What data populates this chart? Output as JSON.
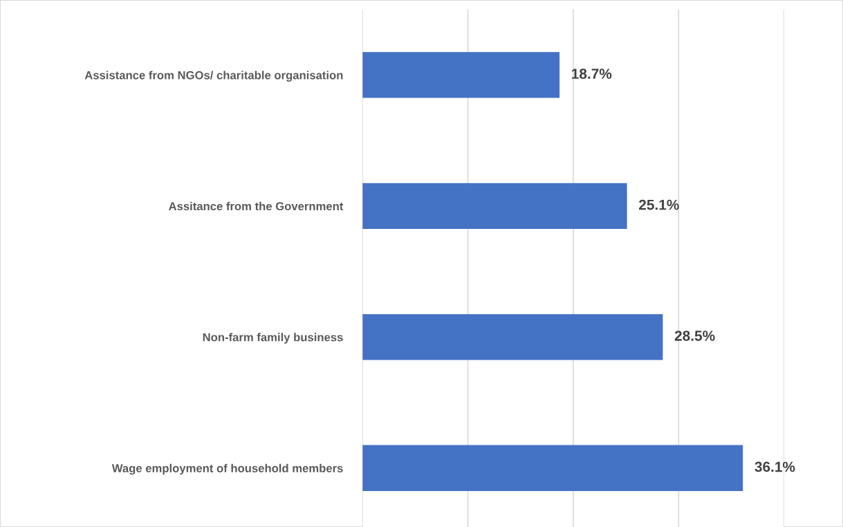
{
  "chart_data": {
    "type": "bar",
    "orientation": "horizontal",
    "categories": [
      "Assistance from NGOs/ charitable organisation",
      "Assitance from the Government",
      "Non-farm family business",
      "Wage employment of household members"
    ],
    "values": [
      18.7,
      25.1,
      28.5,
      36.1
    ],
    "value_labels": [
      "18.7%",
      "25.1%",
      "28.5%",
      "36.1%"
    ],
    "color": "#4472c4",
    "xlim": [
      0,
      40
    ],
    "xticks": [
      {
        "value": 0,
        "label": null
      },
      {
        "value": 10,
        "label": null
      },
      {
        "value": 20,
        "label": null
      },
      {
        "value": 30,
        "label": null
      },
      {
        "value": 40,
        "label": null
      }
    ],
    "grid": "x",
    "tick_labels": "y",
    "legend": false
  }
}
